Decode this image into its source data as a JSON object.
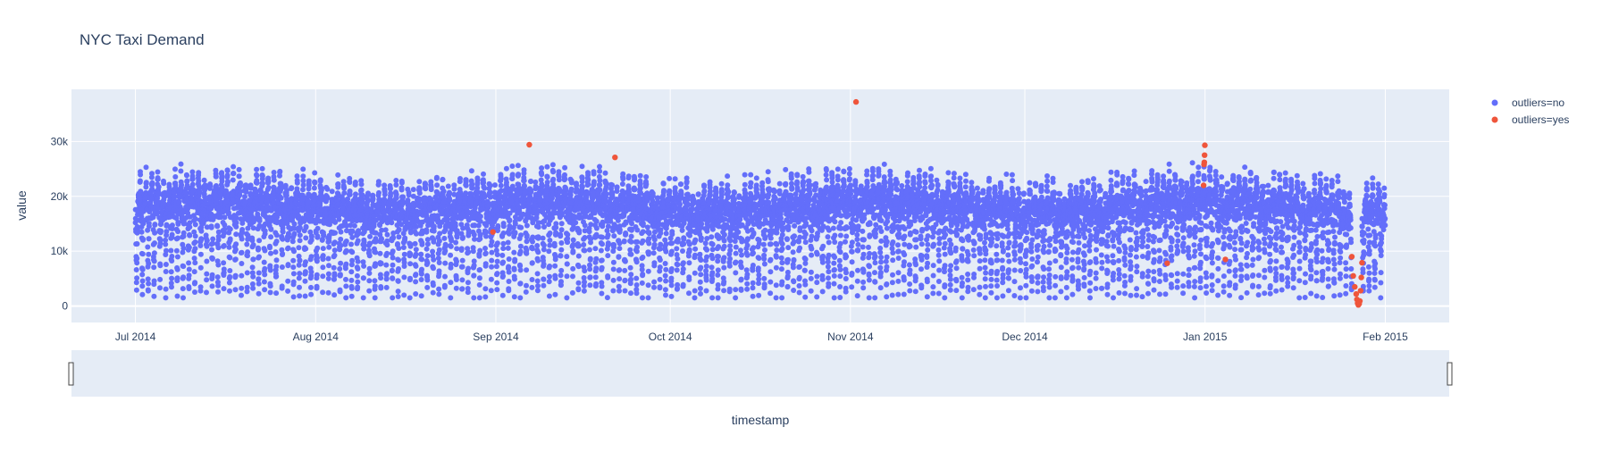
{
  "chart_data": {
    "type": "scatter",
    "title": "NYC Taxi Demand",
    "xlabel": "timestamp",
    "ylabel": "value",
    "x_range": [
      "2014-06-20",
      "2015-02-12"
    ],
    "ylim": [
      -3000,
      39500
    ],
    "x_ticks": [
      {
        "date": "2014-07-01",
        "label": "Jul 2014"
      },
      {
        "date": "2014-08-01",
        "label": "Aug 2014"
      },
      {
        "date": "2014-09-01",
        "label": "Sep 2014"
      },
      {
        "date": "2014-10-01",
        "label": "Oct 2014"
      },
      {
        "date": "2014-11-01",
        "label": "Nov 2014"
      },
      {
        "date": "2014-12-01",
        "label": "Dec 2014"
      },
      {
        "date": "2015-01-01",
        "label": "Jan 2015"
      },
      {
        "date": "2015-02-01",
        "label": "Feb 2015"
      }
    ],
    "y_ticks": [
      {
        "value": 0,
        "label": "0"
      },
      {
        "value": 10000,
        "label": "10k"
      },
      {
        "value": 20000,
        "label": "20k"
      },
      {
        "value": 30000,
        "label": "30k"
      }
    ],
    "grid": true,
    "legend_position": "top-right",
    "rangeslider": true,
    "series": [
      {
        "name": "outliers=no",
        "color": "#636efa",
        "x_start": "2014-07-01",
        "x_end": "2015-01-31",
        "points_per_day": 48,
        "typical_range": [
          1500,
          28000
        ]
      },
      {
        "name": "outliers=yes",
        "color": "#ef553b",
        "points": [
          [
            "2014-08-31 12:00",
            13500
          ],
          [
            "2014-09-06 18:00",
            29400
          ],
          [
            "2014-09-21 12:00",
            27100
          ],
          [
            "2014-11-01 23:00",
            37200
          ],
          [
            "2014-12-25 12:00",
            7800
          ],
          [
            "2014-12-31 18:00",
            22000
          ],
          [
            "2014-12-31 20:00",
            25800
          ],
          [
            "2014-12-31 21:00",
            26200
          ],
          [
            "2014-12-31 22:00",
            27500
          ],
          [
            "2014-12-31 23:00",
            29300
          ],
          [
            "2015-01-04 12:00",
            8500
          ],
          [
            "2015-01-26 06:00",
            9000
          ],
          [
            "2015-01-26 12:00",
            5500
          ],
          [
            "2015-01-26 18:00",
            3500
          ],
          [
            "2015-01-27 00:00",
            2200
          ],
          [
            "2015-01-27 03:00",
            1200
          ],
          [
            "2015-01-27 06:00",
            500
          ],
          [
            "2015-01-27 09:00",
            200
          ],
          [
            "2015-01-27 12:00",
            400
          ],
          [
            "2015-01-27 15:00",
            900
          ],
          [
            "2015-01-27 18:00",
            2800
          ],
          [
            "2015-01-27 21:00",
            5200
          ],
          [
            "2015-01-28 00:00",
            7900
          ]
        ]
      }
    ]
  }
}
